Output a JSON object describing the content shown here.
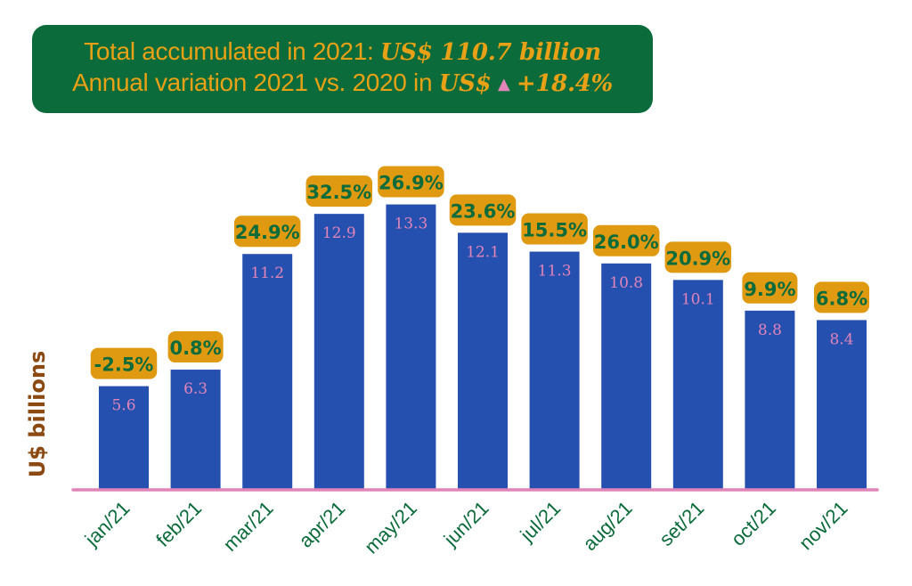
{
  "banner": {
    "line1_prefix": "Total accumulated in 2021: ",
    "line1_value": "US$ 110.7 billion",
    "line2_prefix": "Annual variation 2021 vs. 2020 in ",
    "line2_currency": "US$",
    "line2_arrow": "▲",
    "line2_value": "+18.4%"
  },
  "colors": {
    "banner_bg": "#0b6b3a",
    "banner_text": "#e8a116",
    "bar": "#2650b0",
    "bar_value_text": "#e184b7",
    "pct_box": "#e09a12",
    "pct_text": "#0b6b3a",
    "axis_line": "#e184b7",
    "tick_text": "#0b6b3a",
    "ylabel": "#8b4a12"
  },
  "chart_data": {
    "type": "bar",
    "title": "",
    "xlabel": "",
    "ylabel": "U$ billions",
    "categories": [
      "jan/21",
      "feb/21",
      "mar/21",
      "apr/21",
      "may/21",
      "jun/21",
      "jul/21",
      "aug/21",
      "set/21",
      "oct/21",
      "nov/21"
    ],
    "values": [
      5.6,
      6.3,
      11.2,
      12.9,
      13.3,
      12.1,
      11.3,
      10.8,
      10.1,
      8.8,
      8.4
    ],
    "variation_labels": [
      "-2.5%",
      "0.8%",
      "24.9%",
      "32.5%",
      "26.9%",
      "23.6%",
      "15.5%",
      "26.0%",
      "20.9%",
      "9.9%",
      "6.8%"
    ],
    "variation_values": [
      -2.5,
      0.8,
      24.9,
      32.5,
      26.9,
      23.6,
      15.5,
      26.0,
      20.9,
      9.9,
      6.8
    ],
    "ylim": [
      0,
      14
    ],
    "grid": false,
    "legend": "none"
  }
}
